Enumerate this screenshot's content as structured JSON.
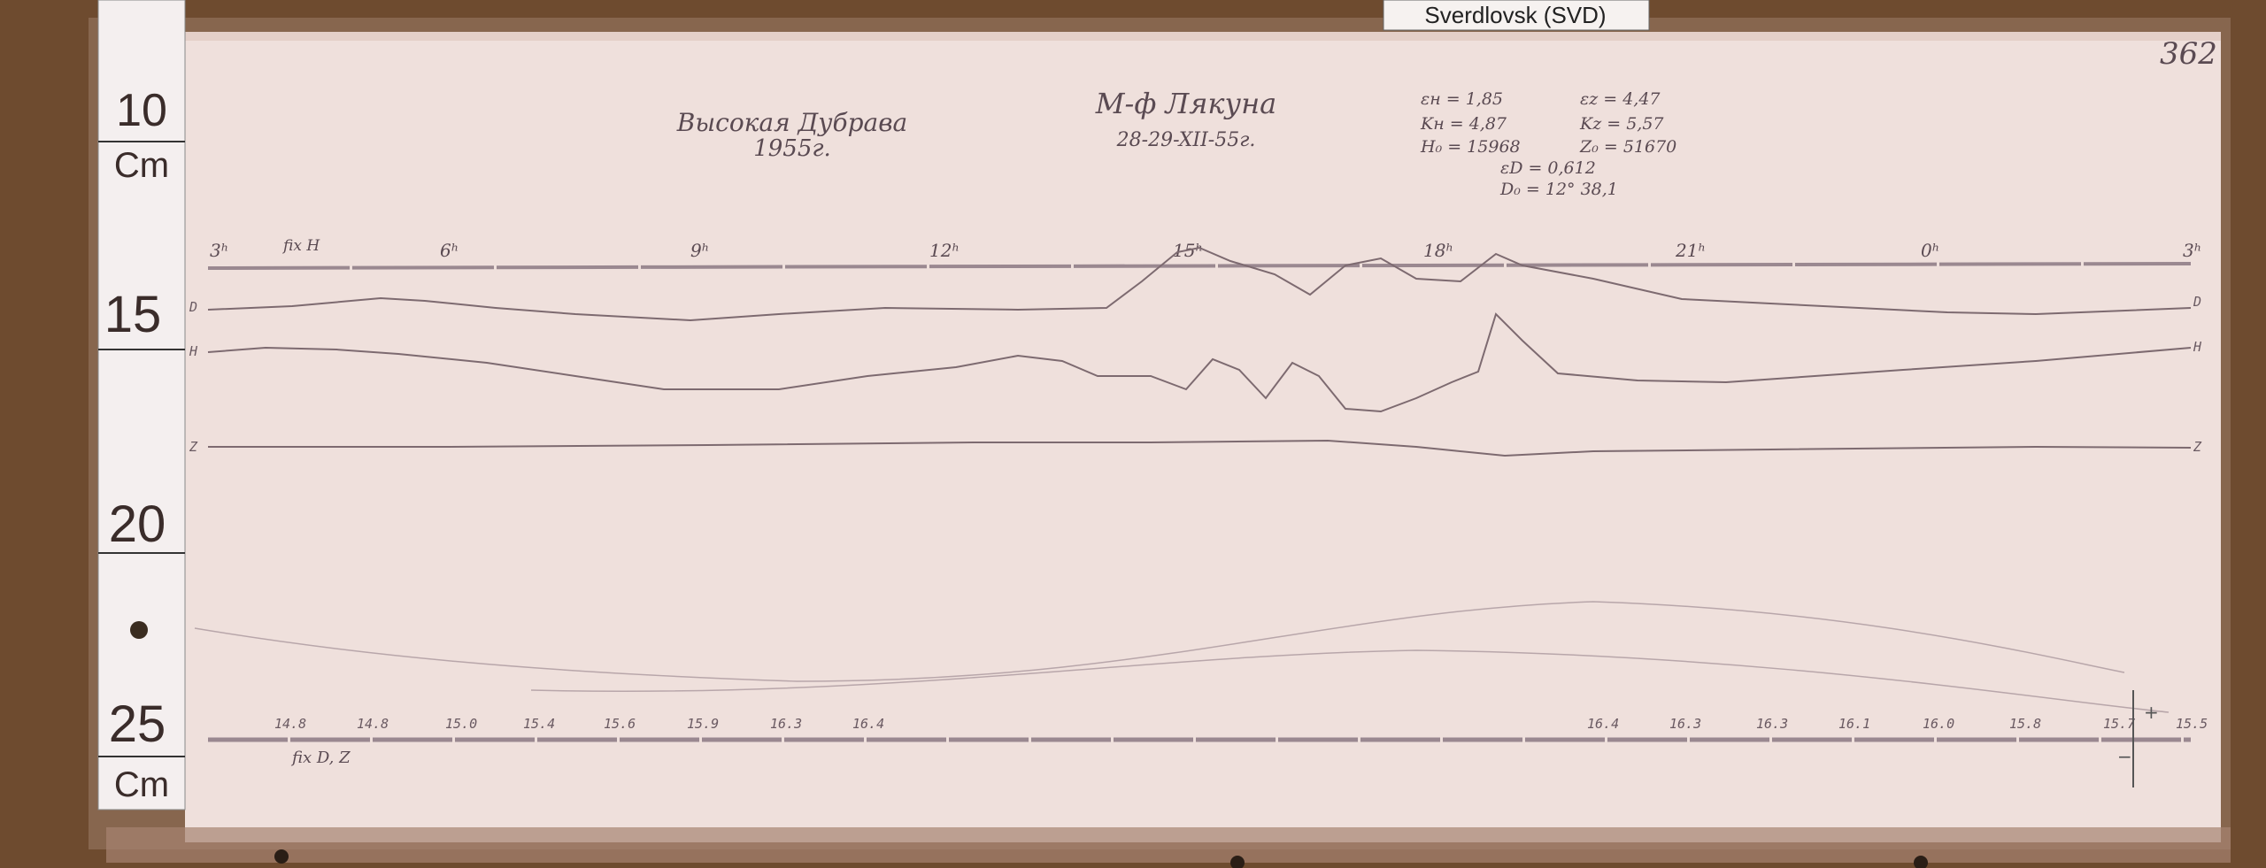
{
  "label_tag": "Sverdlovsk (SVD)",
  "sheet_number": "362",
  "ruler": {
    "unit_top": "Cm",
    "unit_bottom": "Cm",
    "marks": [
      "10",
      "15",
      "20",
      "25"
    ]
  },
  "header": {
    "station": "Высокая Дубрава",
    "year": "1955г.",
    "instrument": "М-ф Лякуна",
    "dates": "28-29-XII-55г."
  },
  "constants": {
    "eps_h": "εн = 1,85",
    "eps_z": "εz = 4,47",
    "k_h": "Kн = 4,87",
    "k_z": "Kz = 5,57",
    "h0": "H₀ = 15968",
    "z0": "Z₀ = 51670",
    "eps_d": "εD = 0,612",
    "d0": "D₀ = 12° 38,1"
  },
  "time_axis": {
    "fix_label": "fix H",
    "hours": [
      "3ʰ",
      "6ʰ",
      "9ʰ",
      "12ʰ",
      "15ʰ",
      "18ʰ",
      "21ʰ",
      "0ʰ",
      "3ʰ"
    ]
  },
  "trace_labels": {
    "d_left": "D",
    "h_left": "H",
    "z_left": "Z",
    "d_right": "D",
    "h_right": "H",
    "z_right": "Z"
  },
  "bottom_axis": {
    "fix_label": "fix D, Z",
    "values": [
      "14.8",
      "14.8",
      "15.0",
      "15.4",
      "15.6",
      "15.9",
      "16.3",
      "16.4",
      "16.4",
      "16.3",
      "16.3",
      "16.1",
      "16.0",
      "15.8",
      "15.7",
      "15.5"
    ],
    "plus": "+",
    "minus": "−"
  },
  "colors": {
    "paper": "#efe0dc",
    "trace": "#7d6a70",
    "wood": "#6b4a2e",
    "ruler": "#f4efef"
  }
}
